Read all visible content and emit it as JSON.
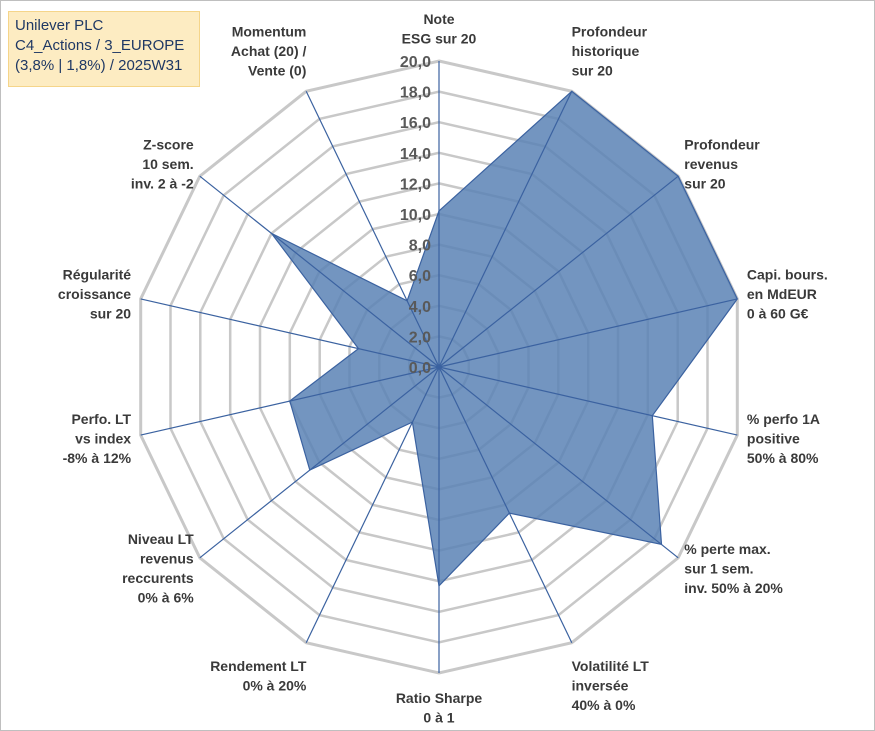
{
  "title_lines": [
    "Unilever PLC",
    "C4_Actions / 3_EUROPE",
    "(3,8% | 1,8%) / 2025W31"
  ],
  "chart_data": {
    "type": "radar",
    "title": "Unilever PLC C4_Actions / 3_EUROPE (3,8% | 1,8%) / 2025W31",
    "rmin": 0,
    "rmax": 20,
    "tick_step": 2,
    "grid_lines": 10,
    "tick_labels": [
      "0,0",
      "2,0",
      "4,0",
      "6,0",
      "8,0",
      "10,0",
      "12,0",
      "14,0",
      "16,0",
      "18,0",
      "20,0"
    ],
    "colors": {
      "fill": "#5b82b5",
      "stroke": "#3b62a0",
      "grid": "#c8c8c8",
      "spoke": "#3b62a0"
    },
    "axes": [
      {
        "lines": [
          "Note",
          "ESG sur 20"
        ],
        "value": 10.2
      },
      {
        "lines": [
          "Profondeur",
          "historique",
          "sur 20"
        ],
        "value": 20.0
      },
      {
        "lines": [
          "Profondeur",
          "revenus",
          "sur 20"
        ],
        "value": 20.0
      },
      {
        "lines": [
          "Capi. bours.",
          "en MdEUR",
          "0 à 60 G€"
        ],
        "value": 20.0
      },
      {
        "lines": [
          "% perfo 1A",
          "positive",
          "50% à 80%"
        ],
        "value": 14.3
      },
      {
        "lines": [
          "% perte max.",
          "sur 1 sem.",
          "inv. 50% à 20%"
        ],
        "value": 18.6
      },
      {
        "lines": [
          "Volatilité LT",
          "inversée",
          "40% à 0%"
        ],
        "value": 10.6
      },
      {
        "lines": [
          "Ratio Sharpe",
          "0 à 1"
        ],
        "value": 14.3
      },
      {
        "lines": [
          "Rendement LT",
          "0% à 20%"
        ],
        "value": 4.0
      },
      {
        "lines": [
          "Niveau LT",
          "revenus",
          "reccurents",
          "0% à 6%"
        ],
        "value": 10.8
      },
      {
        "lines": [
          "Perfo. LT",
          "vs index",
          "-8% à 12%"
        ],
        "value": 10.0
      },
      {
        "lines": [
          "Régularité",
          "croissance",
          "sur 20"
        ],
        "value": 5.4
      },
      {
        "lines": [
          "Z-score",
          "10 sem.",
          "inv. 2 à -2"
        ],
        "value": 14.0
      },
      {
        "lines": [
          "Momentum",
          "Achat (20) /",
          "Vente (0)"
        ],
        "value": 4.8
      }
    ]
  }
}
